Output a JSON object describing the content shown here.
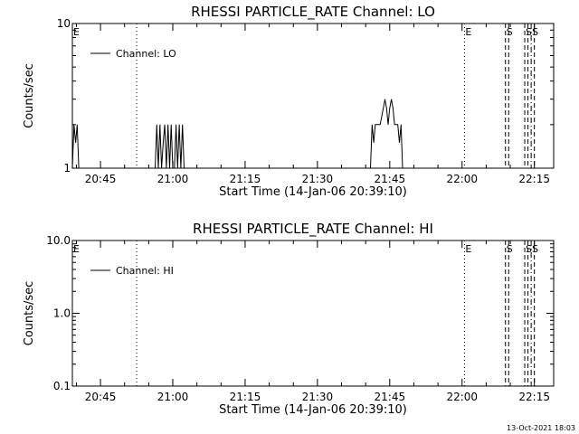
{
  "footer": {
    "timestamp": "13-Oct-2021 18:03"
  },
  "chart_data": [
    {
      "type": "line",
      "title": "RHESSI PARTICLE_RATE Channel: LO",
      "xlabel": "Start Time (14-Jan-06 20:39:10)",
      "ylabel": "Counts/sec",
      "yscale": "log",
      "ylim": [
        1,
        10
      ],
      "ytick_values": [
        1,
        10
      ],
      "ytick_labels": [
        "1",
        "10"
      ],
      "xlim": [
        "20:39:10",
        "22:19:00"
      ],
      "xtick_values": [
        "20:45",
        "21:00",
        "21:15",
        "21:30",
        "21:45",
        "22:00",
        "22:15"
      ],
      "xtick_labels": [
        "20:45",
        "21:00",
        "21:15",
        "21:30",
        "21:45",
        "22:00",
        "22:15"
      ],
      "grid": false,
      "legend": {
        "position": "top-left",
        "entries": [
          "Channel: LO"
        ]
      },
      "series": [
        {
          "name": "Channel: LO",
          "x": [
            "20:39:10",
            "20:39:30",
            "20:39:50",
            "20:40:10",
            "20:40:30",
            "20:40:50",
            "20:56:20",
            "20:56:40",
            "20:57:00",
            "20:57:20",
            "20:57:40",
            "20:58:00",
            "20:58:20",
            "20:58:40",
            "20:59:00",
            "20:59:20",
            "20:59:40",
            "21:00:00",
            "21:00:20",
            "21:00:40",
            "21:01:00",
            "21:01:20",
            "21:01:40",
            "21:02:00",
            "21:02:20",
            "21:41:00",
            "21:41:20",
            "21:41:40",
            "21:42:00",
            "21:42:20",
            "21:43:00",
            "21:43:40",
            "21:44:00",
            "21:44:20",
            "21:44:40",
            "21:45:00",
            "21:45:20",
            "21:45:40",
            "21:46:00",
            "21:46:40",
            "21:47:00",
            "21:47:20",
            "21:47:40",
            "21:48:00"
          ],
          "y": [
            1,
            2,
            1.5,
            2,
            1,
            1,
            1,
            2,
            1,
            2,
            1,
            1.5,
            2,
            1,
            2,
            1,
            2,
            1,
            1,
            2,
            1,
            2,
            1,
            2,
            1,
            1,
            2,
            1.5,
            2,
            2,
            2,
            2.6,
            3,
            2.6,
            2,
            2.6,
            3,
            2.6,
            2,
            2,
            1.5,
            2,
            1,
            1
          ]
        }
      ],
      "markers": [
        {
          "label": "E",
          "time": "20:39:10",
          "style": "dotted"
        },
        {
          "label": "",
          "time": "20:52:30",
          "style": "dotted"
        },
        {
          "label": "E",
          "time": "22:00:30",
          "style": "dotted"
        },
        {
          "label": "S",
          "time": "22:09:00",
          "style": "dashed"
        },
        {
          "label": "",
          "time": "22:09:40",
          "style": "dashed"
        },
        {
          "label": "S",
          "time": "22:13:00",
          "style": "dashed"
        },
        {
          "label": "",
          "time": "22:13:40",
          "style": "dashed"
        },
        {
          "label": "S",
          "time": "22:14:20",
          "style": "dashdot"
        },
        {
          "label": "",
          "time": "22:15:00",
          "style": "dashed"
        }
      ]
    },
    {
      "type": "line",
      "title": "RHESSI PARTICLE_RATE Channel: HI",
      "xlabel": "Start Time (14-Jan-06 20:39:10)",
      "ylabel": "Counts/sec",
      "yscale": "log",
      "ylim": [
        0.1,
        10
      ],
      "ytick_values": [
        0.1,
        1,
        10
      ],
      "ytick_labels": [
        "0.1",
        "1.0",
        "10.0"
      ],
      "xlim": [
        "20:39:10",
        "22:19:00"
      ],
      "xtick_values": [
        "20:45",
        "21:00",
        "21:15",
        "21:30",
        "21:45",
        "22:00",
        "22:15"
      ],
      "xtick_labels": [
        "20:45",
        "21:00",
        "21:15",
        "21:30",
        "21:45",
        "22:00",
        "22:15"
      ],
      "grid": false,
      "legend": {
        "position": "top-left",
        "entries": [
          "Channel: HI"
        ]
      },
      "series": [
        {
          "name": "Channel: HI",
          "x": [],
          "y": []
        }
      ],
      "markers": [
        {
          "label": "E",
          "time": "20:39:10",
          "style": "dotted"
        },
        {
          "label": "",
          "time": "20:52:30",
          "style": "dotted"
        },
        {
          "label": "E",
          "time": "22:00:30",
          "style": "dotted"
        },
        {
          "label": "S",
          "time": "22:09:00",
          "style": "dashed"
        },
        {
          "label": "",
          "time": "22:09:40",
          "style": "dashed"
        },
        {
          "label": "S",
          "time": "22:13:00",
          "style": "dashed"
        },
        {
          "label": "",
          "time": "22:13:40",
          "style": "dashed"
        },
        {
          "label": "S",
          "time": "22:14:20",
          "style": "dashdot"
        },
        {
          "label": "",
          "time": "22:15:00",
          "style": "dashed"
        }
      ]
    }
  ]
}
